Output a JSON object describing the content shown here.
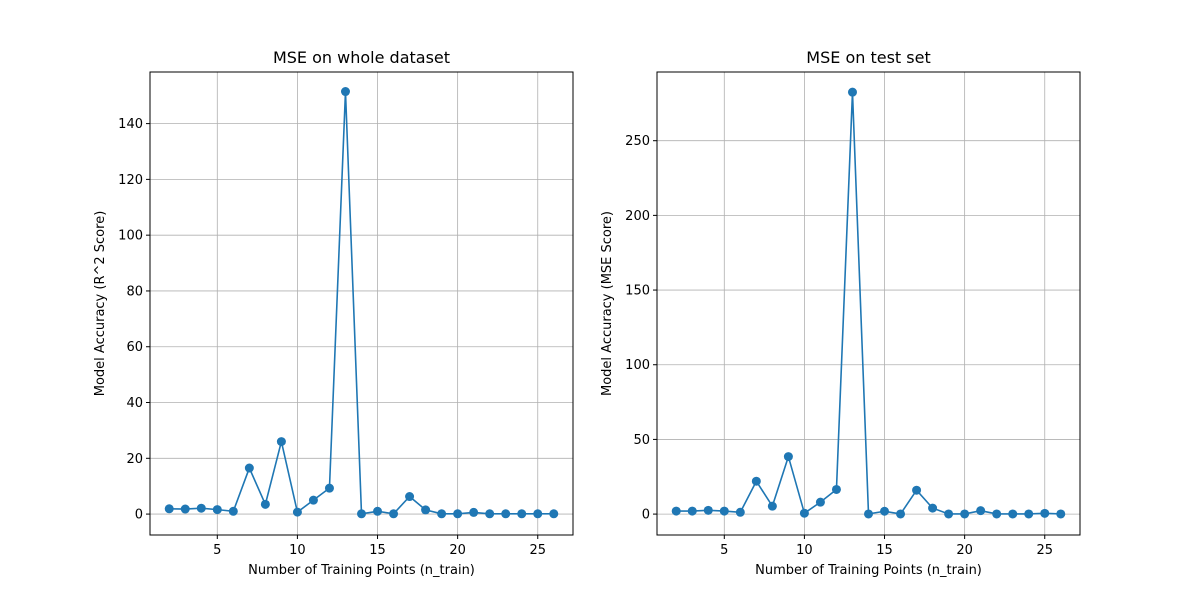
{
  "chart_data": [
    {
      "type": "line",
      "title": "MSE on whole dataset",
      "xlabel": "Number of Training Points (n_train)",
      "ylabel": "Model Accuracy (R^2 Score)",
      "xlim": [
        0.8,
        27.2
      ],
      "ylim": [
        -7.5,
        158.5
      ],
      "xticks": [
        5,
        10,
        15,
        20,
        25
      ],
      "yticks": [
        0,
        20,
        40,
        60,
        80,
        100,
        120,
        140
      ],
      "grid": true,
      "color": "#1f77b4",
      "series": [
        {
          "x": [
            2,
            3,
            4,
            5,
            6,
            7,
            8,
            9,
            10,
            11,
            12,
            13,
            14,
            15,
            16,
            17,
            18,
            19,
            20,
            21,
            22,
            23,
            24,
            25,
            26
          ],
          "y": [
            1.9,
            1.8,
            2.1,
            1.6,
            1.0,
            16.5,
            3.5,
            26.0,
            0.7,
            5.0,
            9.3,
            151.5,
            0.1,
            1.0,
            0.1,
            6.3,
            1.5,
            0.1,
            0.1,
            0.6,
            0.1,
            0.1,
            0.1,
            0.1,
            0.1
          ]
        }
      ]
    },
    {
      "type": "line",
      "title": "MSE on test set",
      "xlabel": "Number of Training Points (n_train)",
      "ylabel": "Model Accuracy (MSE Score)",
      "xlim": [
        0.8,
        27.2
      ],
      "ylim": [
        -14,
        296
      ],
      "xticks": [
        5,
        10,
        15,
        20,
        25
      ],
      "yticks": [
        0,
        50,
        100,
        150,
        200,
        250
      ],
      "grid": true,
      "color": "#1f77b4",
      "series": [
        {
          "x": [
            2,
            3,
            4,
            5,
            6,
            7,
            8,
            9,
            10,
            11,
            12,
            13,
            14,
            15,
            16,
            17,
            18,
            19,
            20,
            21,
            22,
            23,
            24,
            25,
            26
          ],
          "y": [
            2.0,
            2.0,
            2.5,
            2.0,
            1.2,
            22.0,
            5.3,
            38.5,
            0.6,
            8.0,
            16.5,
            282.5,
            0.1,
            1.9,
            0.1,
            16.0,
            4.0,
            0.1,
            0.1,
            2.3,
            0.1,
            0.1,
            0.1,
            0.5,
            0.1
          ]
        }
      ]
    }
  ]
}
